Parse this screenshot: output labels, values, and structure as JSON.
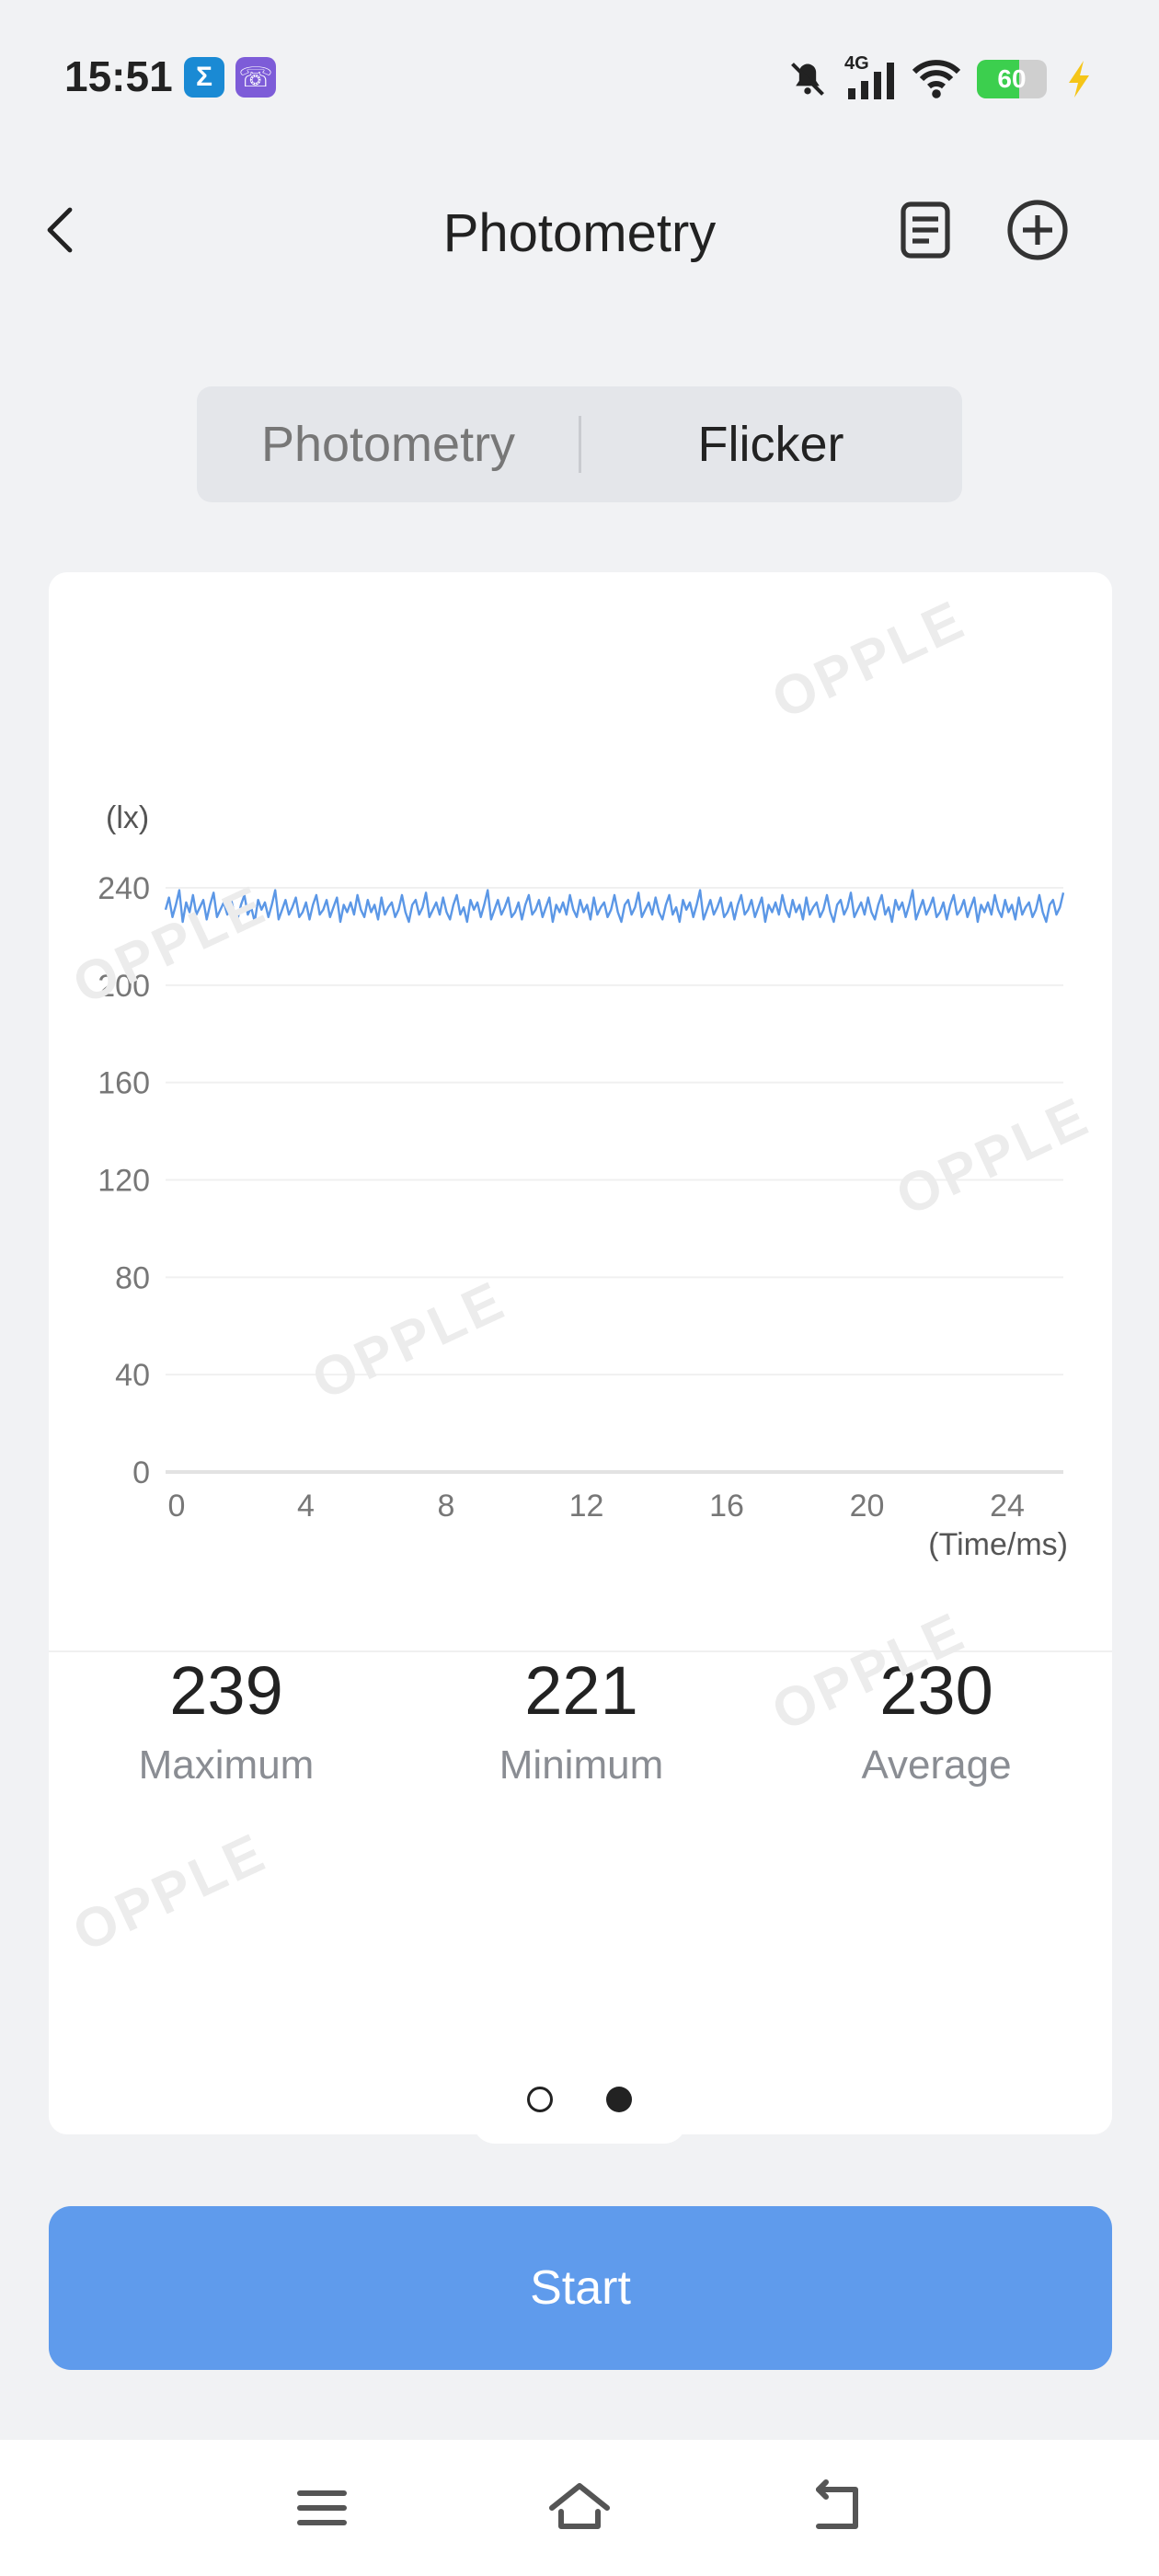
{
  "status_bar": {
    "time": "15:51",
    "apps": [
      {
        "name": "sigma-app-icon",
        "glyph": "Σ",
        "color": "#1a8ad4"
      },
      {
        "name": "viber-app-icon",
        "glyph": "☏",
        "color": "#7d5cd8"
      }
    ],
    "network": "4G",
    "battery": "60",
    "battery_percent": 60,
    "battery_color": "#3ccf4e"
  },
  "header": {
    "title": "Photometry"
  },
  "segmented": {
    "tabs": [
      {
        "label": "Photometry",
        "active": false
      },
      {
        "label": "Flicker",
        "active": true
      }
    ]
  },
  "chart_data": {
    "type": "line",
    "title": "",
    "xlabel": "(Time/ms)",
    "ylabel": "(lx)",
    "y_ticks": [
      "0",
      "40",
      "80",
      "120",
      "160",
      "200",
      "240"
    ],
    "x_ticks": [
      "0",
      "4",
      "8",
      "12",
      "16",
      "20",
      "24"
    ],
    "ylim": [
      0,
      240
    ],
    "xlim": [
      0,
      25.6
    ],
    "grid": true,
    "color": "#5b97e6",
    "series": [
      {
        "values": [
          231,
          236,
          228,
          233,
          239,
          226,
          234,
          230,
          237,
          229,
          232,
          235,
          227,
          233,
          238,
          228,
          231,
          234,
          229,
          236,
          230,
          227,
          233,
          237,
          229,
          232,
          226,
          235,
          231,
          234,
          228,
          233,
          239,
          227,
          231,
          235,
          229,
          232,
          236,
          228,
          230,
          234,
          227,
          233,
          237,
          229,
          231,
          235,
          228,
          232,
          236,
          226,
          233,
          230,
          234,
          229,
          237,
          231,
          228,
          235,
          230,
          233,
          227,
          236,
          229,
          232,
          234,
          228,
          231,
          237,
          230,
          226,
          233,
          235,
          229,
          232,
          238,
          228,
          231,
          234,
          229,
          236,
          230,
          227,
          233,
          237,
          229,
          232,
          226,
          235,
          231,
          234,
          228,
          233,
          239,
          227,
          231,
          235,
          229,
          232,
          236,
          228,
          230,
          234,
          227,
          233,
          237,
          229,
          231,
          235,
          228,
          232,
          236,
          226,
          233,
          230,
          234,
          229,
          237,
          231,
          228,
          235,
          230,
          233,
          227,
          236,
          229,
          232,
          234,
          228,
          231,
          237,
          230,
          226,
          233,
          235,
          229,
          232,
          238,
          228,
          231,
          234,
          229,
          236,
          230,
          227,
          233,
          237,
          229,
          232,
          226,
          235,
          231,
          234,
          228,
          233,
          239,
          227,
          231,
          235,
          229,
          232,
          236,
          228,
          230,
          234,
          227,
          233,
          237,
          229,
          231,
          235,
          228,
          232,
          236,
          226,
          233,
          230,
          234,
          229,
          237,
          231,
          228,
          235,
          230,
          233,
          227,
          236,
          229,
          232,
          234,
          228,
          231,
          237,
          230,
          226,
          233,
          235,
          229,
          232,
          238,
          228,
          231,
          234,
          229,
          236,
          230,
          227,
          233,
          237,
          229,
          232,
          226,
          235,
          231,
          234,
          228,
          233,
          239,
          227,
          231,
          235,
          229,
          232,
          236,
          228,
          230,
          234,
          227,
          233,
          237,
          229,
          231,
          235,
          228,
          232,
          236,
          226,
          233,
          230,
          234,
          229,
          237,
          231,
          228,
          235,
          230,
          233,
          227,
          236,
          229,
          232,
          234,
          228,
          231,
          237,
          230,
          226,
          233,
          235,
          229,
          232,
          238
        ]
      }
    ]
  },
  "watermark": "OPPLE",
  "stats": [
    {
      "value": "239",
      "label": "Maximum"
    },
    {
      "value": "221",
      "label": "Minimum"
    },
    {
      "value": "230",
      "label": "Average"
    }
  ],
  "pager": {
    "count": 2,
    "active": 1
  },
  "start_button": {
    "label": "Start",
    "color": "#5f9bec"
  }
}
